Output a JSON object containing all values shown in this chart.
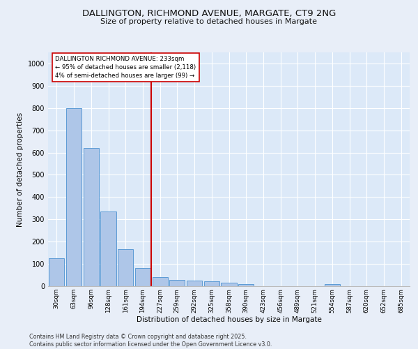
{
  "title_line1": "DALLINGTON, RICHMOND AVENUE, MARGATE, CT9 2NG",
  "title_line2": "Size of property relative to detached houses in Margate",
  "xlabel": "Distribution of detached houses by size in Margate",
  "ylabel": "Number of detached properties",
  "categories": [
    "30sqm",
    "63sqm",
    "96sqm",
    "128sqm",
    "161sqm",
    "194sqm",
    "227sqm",
    "259sqm",
    "292sqm",
    "325sqm",
    "358sqm",
    "390sqm",
    "423sqm",
    "456sqm",
    "489sqm",
    "521sqm",
    "554sqm",
    "587sqm",
    "620sqm",
    "652sqm",
    "685sqm"
  ],
  "values": [
    125,
    800,
    620,
    335,
    165,
    82,
    40,
    27,
    24,
    22,
    15,
    8,
    0,
    0,
    0,
    0,
    8,
    0,
    0,
    0,
    0
  ],
  "bar_color": "#aec6e8",
  "bar_edge_color": "#5b9bd5",
  "vline_x": 6,
  "vline_color": "#cc0000",
  "annotation_text": "DALLINGTON RICHMOND AVENUE: 233sqm\n← 95% of detached houses are smaller (2,118)\n4% of semi-detached houses are larger (99) →",
  "annotation_box_color": "#ffffff",
  "annotation_box_edge_color": "#cc0000",
  "ylim": [
    0,
    1050
  ],
  "yticks": [
    0,
    100,
    200,
    300,
    400,
    500,
    600,
    700,
    800,
    900,
    1000
  ],
  "background_color": "#dce9f8",
  "grid_color": "#ffffff",
  "fig_background": "#e8eef8",
  "footer_line1": "Contains HM Land Registry data © Crown copyright and database right 2025.",
  "footer_line2": "Contains public sector information licensed under the Open Government Licence v3.0."
}
